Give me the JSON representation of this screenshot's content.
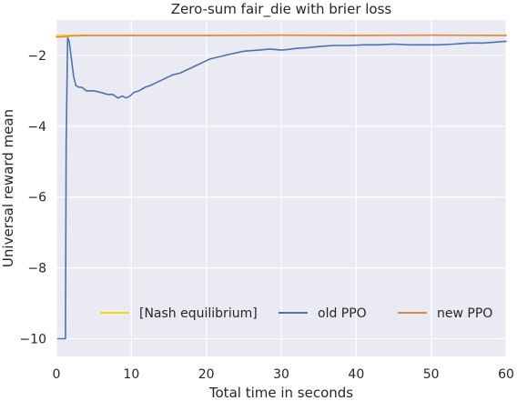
{
  "chart_data": {
    "type": "line",
    "title": "Zero-sum fair_die with brier loss",
    "xlabel": "Total time in seconds",
    "ylabel": "Universal reward mean",
    "xlim": [
      0,
      60
    ],
    "ylim": [
      -10.5,
      -1.0
    ],
    "xticks": [
      0,
      10,
      20,
      30,
      40,
      50,
      60
    ],
    "yticks": [
      -10,
      -8,
      -6,
      -4,
      -2
    ],
    "grid": true,
    "legend_position": "lower-right",
    "series": [
      {
        "name": "[Nash equilibrium]",
        "color": "#ffd700",
        "x": [
          0,
          60
        ],
        "y": [
          -1.43,
          -1.43
        ]
      },
      {
        "name": "old PPO",
        "color": "#4c72b0",
        "x": [
          0.2,
          1.2,
          1.3,
          1.5,
          1.7,
          2.0,
          2.3,
          2.6,
          3.0,
          3.4,
          4.0,
          5.0,
          6.0,
          6.8,
          7.5,
          8.2,
          8.8,
          9.3,
          9.8,
          10.3,
          11.0,
          11.8,
          12.5,
          13.5,
          14.5,
          15.5,
          16.5,
          17.5,
          18.5,
          19.5,
          20.5,
          21.5,
          22.5,
          23.5,
          25.0,
          27.0,
          28.5,
          30.0,
          31.0,
          32.0,
          33.5,
          35.0,
          37.0,
          39.0,
          41.0,
          43.0,
          45.0,
          47.0,
          49.0,
          51.0,
          53.0,
          55.0,
          57.0,
          59.0,
          60.0
        ],
        "y": [
          -10.0,
          -10.0,
          -4.5,
          -1.5,
          -1.6,
          -2.1,
          -2.6,
          -2.85,
          -2.9,
          -2.9,
          -3.0,
          -3.0,
          -3.05,
          -3.1,
          -3.1,
          -3.2,
          -3.15,
          -3.2,
          -3.15,
          -3.05,
          -3.0,
          -2.9,
          -2.85,
          -2.75,
          -2.65,
          -2.55,
          -2.5,
          -2.4,
          -2.3,
          -2.2,
          -2.1,
          -2.05,
          -2.0,
          -1.95,
          -1.88,
          -1.85,
          -1.82,
          -1.85,
          -1.83,
          -1.8,
          -1.78,
          -1.75,
          -1.72,
          -1.72,
          -1.7,
          -1.7,
          -1.68,
          -1.7,
          -1.7,
          -1.7,
          -1.68,
          -1.65,
          -1.65,
          -1.62,
          -1.6
        ]
      },
      {
        "name": "new PPO",
        "color": "#dd8452",
        "x": [
          0,
          1,
          2,
          4,
          10,
          20,
          30,
          40,
          50,
          60
        ],
        "y": [
          -1.48,
          -1.47,
          -1.45,
          -1.44,
          -1.44,
          -1.44,
          -1.43,
          -1.44,
          -1.43,
          -1.44
        ]
      }
    ]
  }
}
